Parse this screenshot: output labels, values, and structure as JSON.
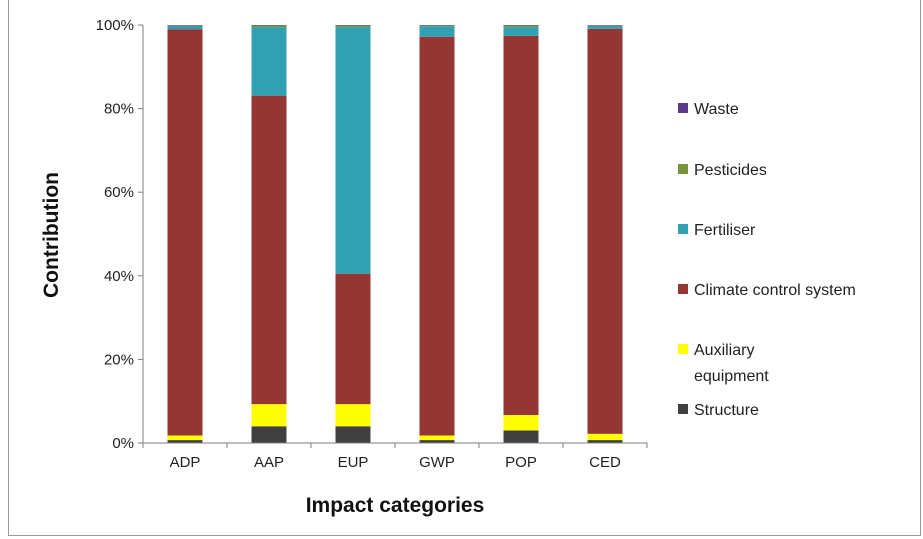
{
  "chart_data": {
    "type": "bar",
    "stacked": true,
    "normalized_percent": true,
    "categories": [
      "ADP",
      "AAP",
      "EUP",
      "GWP",
      "POP",
      "CED"
    ],
    "xlabel": "Impact categories",
    "ylabel": "Contribution",
    "ylim": [
      0,
      100
    ],
    "yticks": [
      "0%",
      "20%",
      "40%",
      "60%",
      "80%",
      "100%"
    ],
    "grid": false,
    "legend_position": "right",
    "series": [
      {
        "name": "Structure",
        "color": "#404040",
        "values": [
          0.7,
          4.0,
          4.0,
          0.7,
          3.0,
          0.7
        ]
      },
      {
        "name": "Auxiliary equipment",
        "color": "#ffff00",
        "values": [
          1.1,
          5.3,
          5.3,
          1.1,
          3.7,
          1.5
        ]
      },
      {
        "name": "Climate control system",
        "color": "#943634",
        "values": [
          97.2,
          73.8,
          31.2,
          95.4,
          90.7,
          96.9
        ]
      },
      {
        "name": "Fertiliser",
        "color": "#31a0b2",
        "values": [
          0.8,
          16.4,
          59.0,
          2.5,
          2.1,
          0.7
        ]
      },
      {
        "name": "Pesticides",
        "color": "#77933c",
        "values": [
          0.1,
          0.4,
          0.4,
          0.2,
          0.4,
          0.1
        ]
      },
      {
        "name": "Waste",
        "color": "#5b3c8c",
        "values": [
          0.1,
          0.1,
          0.1,
          0.1,
          0.1,
          0.1
        ]
      }
    ]
  },
  "legend": {
    "items": [
      {
        "lines": [
          "Waste"
        ],
        "color": "#5b3c8c"
      },
      {
        "lines": [
          "Pesticides"
        ],
        "color": "#77933c"
      },
      {
        "lines": [
          "Fertiliser"
        ],
        "color": "#31a0b2"
      },
      {
        "lines": [
          "Climate control system"
        ],
        "color": "#943634"
      },
      {
        "lines": [
          "Auxiliary",
          "equipment"
        ],
        "color": "#ffff00"
      },
      {
        "lines": [
          "Structure"
        ],
        "color": "#404040"
      }
    ]
  }
}
